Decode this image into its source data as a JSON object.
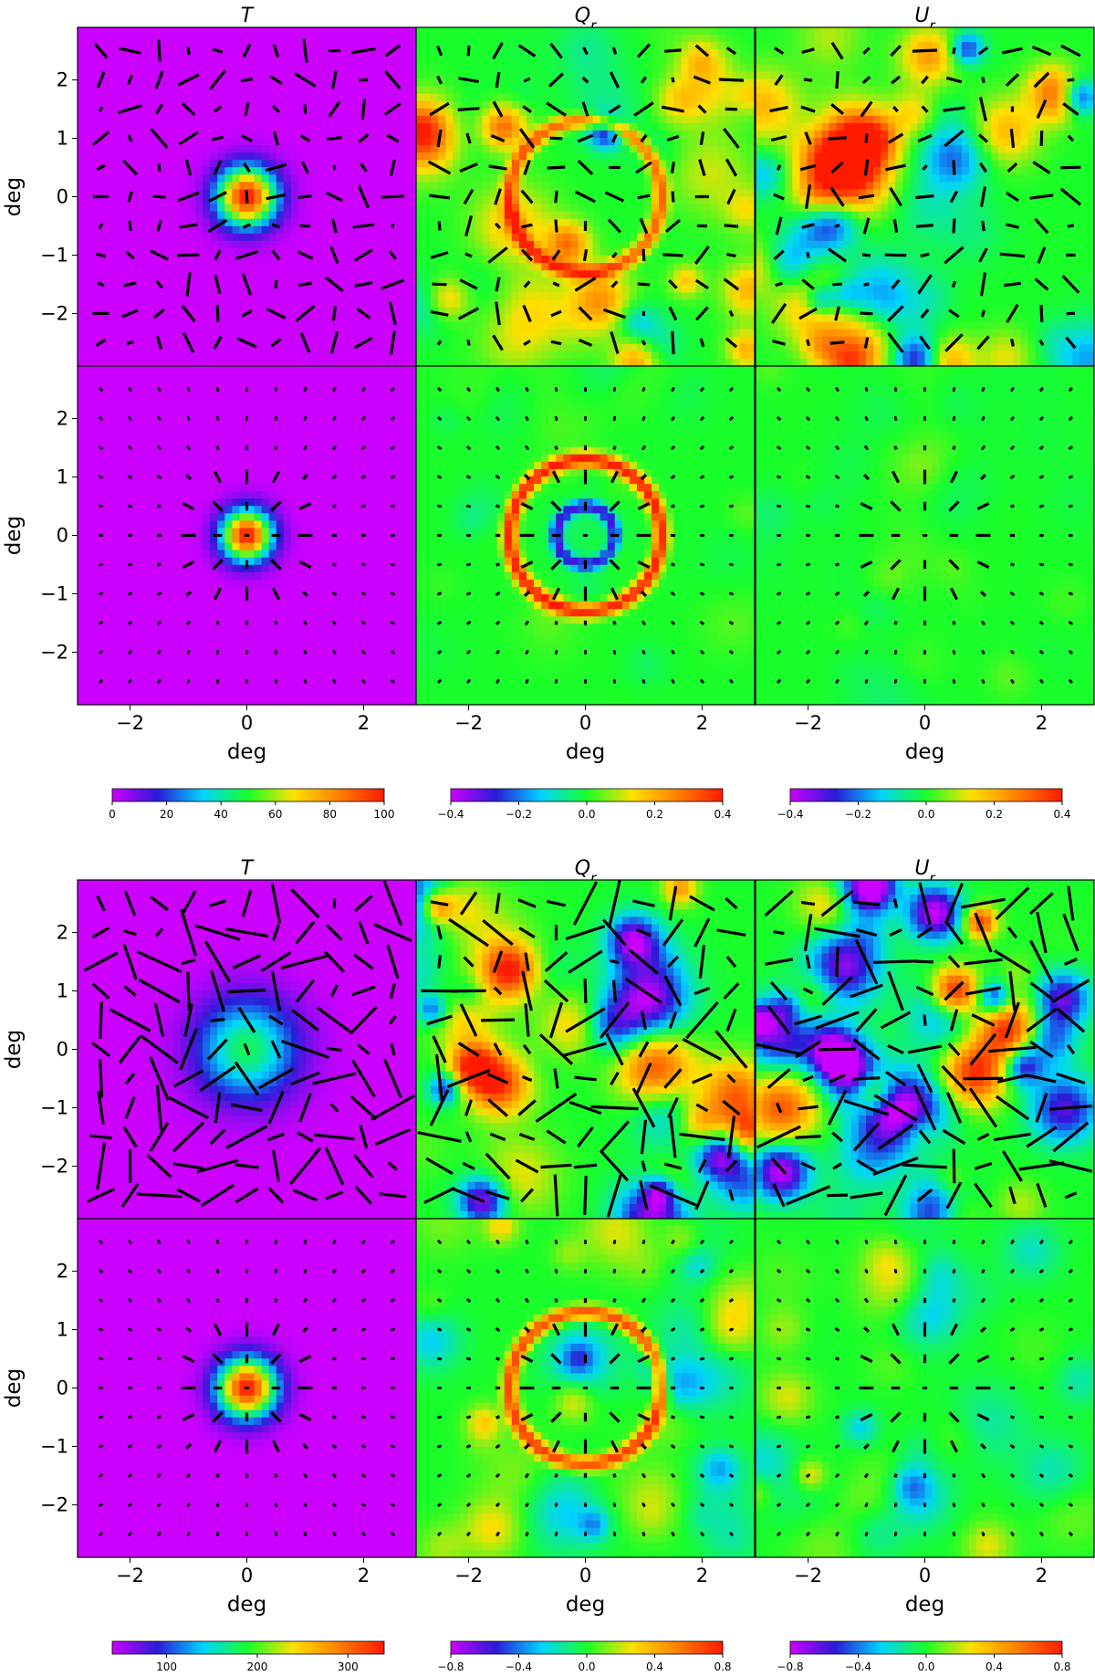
{
  "figure": {
    "column_titles": [
      "T",
      "Q",
      "U"
    ],
    "column_title_subscripts": [
      "",
      "r",
      "r"
    ],
    "axis_label": "deg"
  },
  "chart_data": {
    "type": "heatmap",
    "description_free": true,
    "axis_ticks": [
      -2,
      -1,
      0,
      1,
      2
    ],
    "axis_tick_labels": [
      "−2",
      "−1",
      "0",
      "1",
      "2"
    ],
    "bottom_tick_values": [
      -2,
      0,
      2
    ],
    "bottom_tick_labels": [
      "−2",
      "0",
      "2"
    ],
    "xlim": [
      -2.9,
      2.9
    ],
    "ylim": [
      -2.9,
      2.9
    ],
    "colormap": [
      "#cc00ff",
      "#2a1bd8",
      "#00d4ff",
      "#19ff2a",
      "#ffe000",
      "#ff8000",
      "#ff1a00"
    ],
    "vector_color": "#000000",
    "groups": [
      {
        "colorbars": [
          {
            "min": 0,
            "max": 100,
            "ticks": [
              0,
              20,
              40,
              60,
              80,
              100
            ],
            "tick_labels": [
              "0",
              "20",
              "40",
              "60",
              "80",
              "100"
            ]
          },
          {
            "min": -0.4,
            "max": 0.4,
            "ticks": [
              -0.4,
              -0.2,
              0.0,
              0.2,
              0.4
            ],
            "tick_labels": [
              "−0.4",
              "−0.2",
              "0.0",
              "0.2",
              "0.4"
            ]
          },
          {
            "min": -0.4,
            "max": 0.4,
            "ticks": [
              -0.4,
              -0.2,
              0.0,
              0.2,
              0.4
            ],
            "tick_labels": [
              "−0.4",
              "−0.2",
              "0.0",
              "0.2",
              "0.4"
            ]
          }
        ],
        "rows": [
          {
            "panels": [
              {
                "map": "T",
                "peak": 100,
                "center_width": 0.35,
                "background": 0.05,
                "vectors": "random",
                "vector_scale": 1.0
              },
              {
                "map": "Q",
                "ring_radius": 1.3,
                "ring_amp": 0.3,
                "noise": 0.28,
                "vectors": "random",
                "vector_scale": 1.0
              },
              {
                "map": "U",
                "noise": 0.28,
                "vectors": "random",
                "vector_scale": 1.0
              }
            ]
          },
          {
            "panels": [
              {
                "map": "T",
                "peak": 100,
                "center_width": 0.3,
                "background": 0.04,
                "vectors": "radial",
                "vector_scale": 0.8
              },
              {
                "map": "Q",
                "ring_radius": 1.3,
                "ring_amp": 0.4,
                "inner_ring": 0.5,
                "noise": 0.04,
                "vectors": "radial",
                "vector_scale": 0.8
              },
              {
                "map": "U",
                "noise": 0.04,
                "vectors": "radial",
                "vector_scale": 0.8
              }
            ]
          }
        ]
      },
      {
        "colorbars": [
          {
            "min": 40,
            "max": 340,
            "ticks": [
              100,
              200,
              300
            ],
            "tick_labels": [
              "100",
              "200",
              "300"
            ]
          },
          {
            "min": -0.8,
            "max": 0.8,
            "ticks": [
              -0.8,
              -0.4,
              0.0,
              0.4,
              0.8
            ],
            "tick_labels": [
              "−0.8",
              "−0.4",
              "0.0",
              "0.4",
              "0.8"
            ]
          },
          {
            "min": -0.8,
            "max": 0.8,
            "ticks": [
              -0.8,
              -0.4,
              0.0,
              0.4,
              0.8
            ],
            "tick_labels": [
              "−0.8",
              "−0.4",
              "0.0",
              "0.4",
              "0.8"
            ]
          }
        ],
        "rows": [
          {
            "panels": [
              {
                "map": "T",
                "peak": 180,
                "center_width": 0.6,
                "background": 40,
                "vectors": "random",
                "vector_scale": 2.0
              },
              {
                "map": "Q",
                "noise": 0.9,
                "vectors": "random",
                "vector_scale": 2.0
              },
              {
                "map": "U",
                "noise": 0.9,
                "vectors": "random",
                "vector_scale": 2.0
              }
            ]
          },
          {
            "panels": [
              {
                "map": "T",
                "peak": 340,
                "center_width": 0.35,
                "background": 40,
                "vectors": "radial",
                "vector_scale": 0.8
              },
              {
                "map": "Q",
                "ring_radius": 1.3,
                "ring_amp": 0.7,
                "noise": 0.3,
                "vectors": "radial",
                "vector_scale": 0.8
              },
              {
                "map": "U",
                "noise": 0.3,
                "vectors": "radial",
                "vector_scale": 0.8
              }
            ]
          }
        ]
      }
    ]
  }
}
